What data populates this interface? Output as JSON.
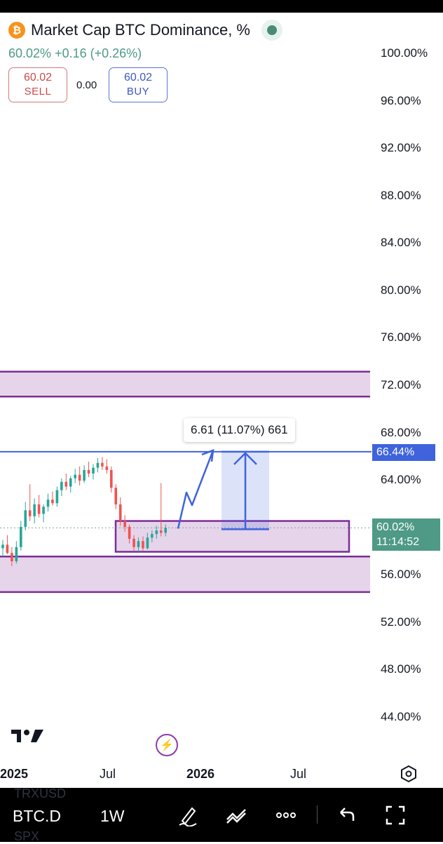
{
  "header": {
    "coin_icon": "bitcoin-icon",
    "title": "Market Cap BTC Dominance, %",
    "price": "60.02%",
    "change": "+0.16 (+0.26%)"
  },
  "trade": {
    "sell_price": "60.02",
    "sell_label": "SELL",
    "spread": "0.00",
    "buy_price": "60.02",
    "buy_label": "BUY"
  },
  "chart_data": {
    "type": "candlestick",
    "symbol": "BTC.D",
    "interval": "1W",
    "y_axis_ticks": [
      "100.00%",
      "96.00%",
      "92.00%",
      "88.00%",
      "84.00%",
      "80.00%",
      "76.00%",
      "72.00%",
      "68.00%",
      "64.00%",
      "60.00%",
      "56.00%",
      "52.00%",
      "48.00%",
      "44.00%"
    ],
    "ylim": [
      44,
      100
    ],
    "x_axis_ticks": [
      "2025",
      "Jul",
      "2026",
      "Jul"
    ],
    "last_price_tag": "60.02%",
    "countdown": "11:14:52",
    "target_tag": "66.44%",
    "measure_label": "6.61 (11.07%) 661",
    "candles": [
      {
        "o": 58.3,
        "h": 59.0,
        "l": 57.6,
        "c": 58.6
      },
      {
        "o": 58.6,
        "h": 59.4,
        "l": 57.8,
        "c": 57.9
      },
      {
        "o": 57.9,
        "h": 58.4,
        "l": 56.8,
        "c": 57.2
      },
      {
        "o": 57.2,
        "h": 58.9,
        "l": 57.0,
        "c": 58.4
      },
      {
        "o": 58.4,
        "h": 60.6,
        "l": 58.1,
        "c": 60.1
      },
      {
        "o": 60.1,
        "h": 62.2,
        "l": 59.8,
        "c": 61.5
      },
      {
        "o": 61.5,
        "h": 63.7,
        "l": 60.6,
        "c": 61.0
      },
      {
        "o": 61.0,
        "h": 62.5,
        "l": 60.4,
        "c": 62.0
      },
      {
        "o": 62.0,
        "h": 62.8,
        "l": 60.9,
        "c": 61.2
      },
      {
        "o": 61.2,
        "h": 62.0,
        "l": 60.5,
        "c": 61.8
      },
      {
        "o": 61.8,
        "h": 62.9,
        "l": 61.4,
        "c": 62.4
      },
      {
        "o": 62.4,
        "h": 63.1,
        "l": 61.9,
        "c": 62.1
      },
      {
        "o": 62.1,
        "h": 63.5,
        "l": 61.8,
        "c": 63.2
      },
      {
        "o": 63.2,
        "h": 64.2,
        "l": 62.7,
        "c": 63.9
      },
      {
        "o": 63.9,
        "h": 64.6,
        "l": 63.2,
        "c": 63.5
      },
      {
        "o": 63.5,
        "h": 64.4,
        "l": 63.0,
        "c": 64.2
      },
      {
        "o": 64.2,
        "h": 65.0,
        "l": 63.8,
        "c": 64.5
      },
      {
        "o": 64.5,
        "h": 65.2,
        "l": 63.6,
        "c": 64.0
      },
      {
        "o": 64.0,
        "h": 65.3,
        "l": 63.8,
        "c": 64.9
      },
      {
        "o": 64.9,
        "h": 65.6,
        "l": 64.3,
        "c": 64.6
      },
      {
        "o": 64.6,
        "h": 65.4,
        "l": 64.1,
        "c": 65.1
      },
      {
        "o": 65.1,
        "h": 65.9,
        "l": 64.7,
        "c": 65.5
      },
      {
        "o": 65.5,
        "h": 66.0,
        "l": 64.9,
        "c": 65.2
      },
      {
        "o": 65.2,
        "h": 65.8,
        "l": 64.6,
        "c": 64.9
      },
      {
        "o": 64.9,
        "h": 65.2,
        "l": 63.0,
        "c": 63.4
      },
      {
        "o": 63.4,
        "h": 63.7,
        "l": 61.6,
        "c": 62.0
      },
      {
        "o": 62.0,
        "h": 62.6,
        "l": 60.2,
        "c": 60.6
      },
      {
        "o": 60.6,
        "h": 61.1,
        "l": 59.7,
        "c": 60.1
      },
      {
        "o": 60.1,
        "h": 60.3,
        "l": 58.7,
        "c": 59.1
      },
      {
        "o": 59.1,
        "h": 59.4,
        "l": 58.1,
        "c": 58.4
      },
      {
        "o": 58.4,
        "h": 59.2,
        "l": 58.0,
        "c": 58.9
      },
      {
        "o": 58.9,
        "h": 59.3,
        "l": 58.1,
        "c": 58.3
      },
      {
        "o": 58.3,
        "h": 59.6,
        "l": 58.2,
        "c": 59.2
      },
      {
        "o": 59.2,
        "h": 59.8,
        "l": 58.8,
        "c": 59.5
      },
      {
        "o": 59.5,
        "h": 60.2,
        "l": 59.1,
        "c": 59.8
      },
      {
        "o": 59.8,
        "h": 63.8,
        "l": 59.3,
        "c": 59.6
      },
      {
        "o": 59.6,
        "h": 60.3,
        "l": 59.3,
        "c": 60.02
      }
    ],
    "zones": [
      {
        "low": 71.1,
        "high": 73.2
      },
      {
        "low": 54.6,
        "high": 57.6
      }
    ],
    "entry_box": {
      "low": 58.0,
      "high": 60.6
    },
    "target_level": 66.44,
    "grid": false
  },
  "toolbar": {
    "symbol": "BTC.D",
    "interval": "1W",
    "watermark_top": "TRXUSD",
    "watermark_bottom": "SPX",
    "icons": [
      "draw-pen-icon",
      "indicators-icon",
      "more-icon",
      "undo-icon",
      "fullscreen-icon"
    ]
  },
  "colors": {
    "up": "#26a69a",
    "down": "#ef5350",
    "zone_fill": "#e6d4ea",
    "zone_border": "#7b2d96",
    "blue": "#3e63dd",
    "tag_green": "#4e9a86"
  }
}
